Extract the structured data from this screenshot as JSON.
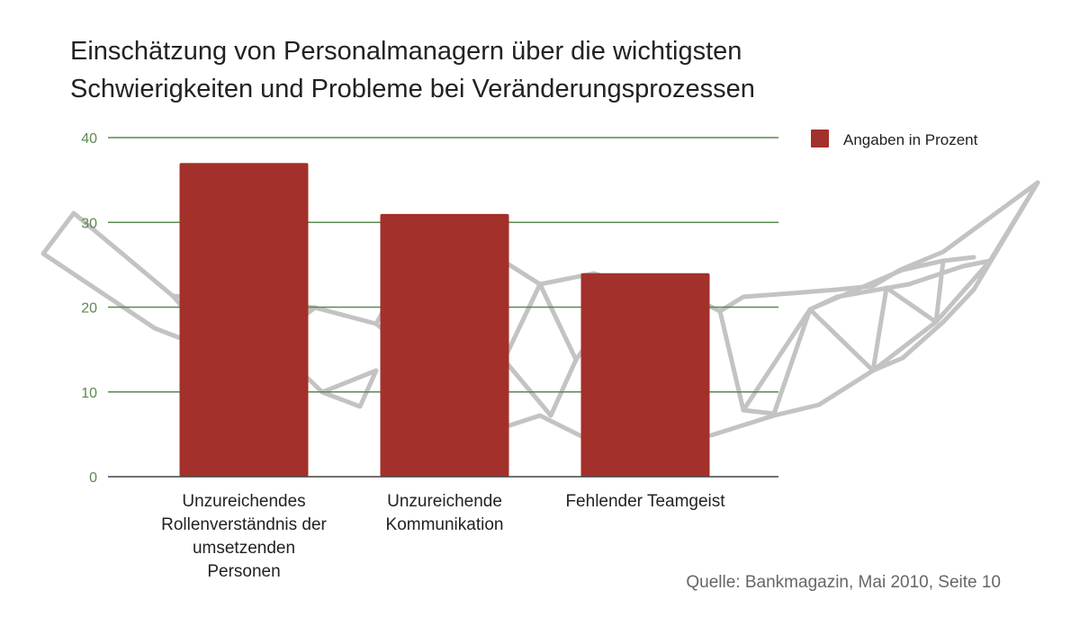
{
  "colors": {
    "bar": "#a3302a",
    "grid": "#5a8a4e",
    "axis": "#444444",
    "decoration": "#c3c3c3"
  },
  "chart_data": {
    "type": "bar",
    "title": [
      "Einschätzung von Personalmanagern über die wichtigsten",
      "Schwierigkeiten und Probleme bei Veränderungsprozessen"
    ],
    "categories": [
      [
        "Unzureichendes",
        "Rollenverständnis der",
        "umsetzenden",
        "Personen"
      ],
      [
        "Unzureichende",
        "Kommunikation"
      ],
      [
        "Fehlender Teamgeist"
      ]
    ],
    "series": [
      {
        "name": "Angaben in Prozent",
        "values": [
          37,
          31,
          24
        ]
      }
    ],
    "ylim": [
      0,
      40
    ],
    "yticks": [
      0,
      10,
      20,
      30,
      40
    ],
    "grid": true,
    "legend_position": "top-right",
    "xlabel": "",
    "ylabel": "",
    "source": "Quelle: Bankmagazin, Mai 2010, Seite 10"
  }
}
